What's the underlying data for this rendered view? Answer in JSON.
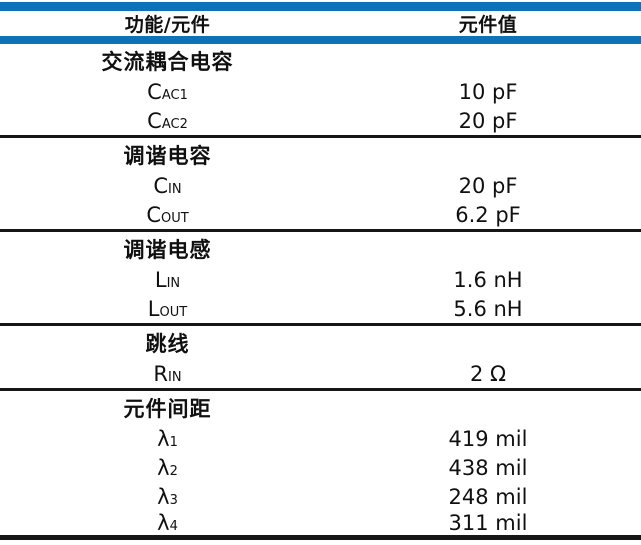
{
  "colors": {
    "accent_blue": "#0e72b8",
    "rule_black": "#161616",
    "text": "#101010"
  },
  "table": {
    "columns": [
      "功能/元件",
      "元件值"
    ],
    "sections": [
      {
        "title": "交流耦合电容",
        "rows": [
          {
            "base": "C",
            "sub": "AC1",
            "value": "10 pF"
          },
          {
            "base": "C",
            "sub": "AC2",
            "value": "20 pF"
          }
        ]
      },
      {
        "title": "调谐电容",
        "rows": [
          {
            "base": "C",
            "sub": "IN",
            "value": "20 pF"
          },
          {
            "base": "C",
            "sub": "OUT",
            "value": "6.2 pF"
          }
        ]
      },
      {
        "title": "调谐电感",
        "rows": [
          {
            "base": "L",
            "sub": "IN",
            "value": "1.6 nH"
          },
          {
            "base": "L",
            "sub": "OUT",
            "value": "5.6 nH"
          }
        ]
      },
      {
        "title": "跳线",
        "rows": [
          {
            "base": "R",
            "sub": "IN",
            "value": "2 Ω"
          }
        ]
      },
      {
        "title": "元件间距",
        "rows": [
          {
            "base": "λ",
            "sub": "1",
            "value": "419 mil"
          },
          {
            "base": "λ",
            "sub": "2",
            "value": "438 mil"
          },
          {
            "base": "λ",
            "sub": "3",
            "value": "248 mil"
          },
          {
            "base": "λ",
            "sub": "4",
            "value": "311 mil"
          }
        ]
      }
    ]
  }
}
